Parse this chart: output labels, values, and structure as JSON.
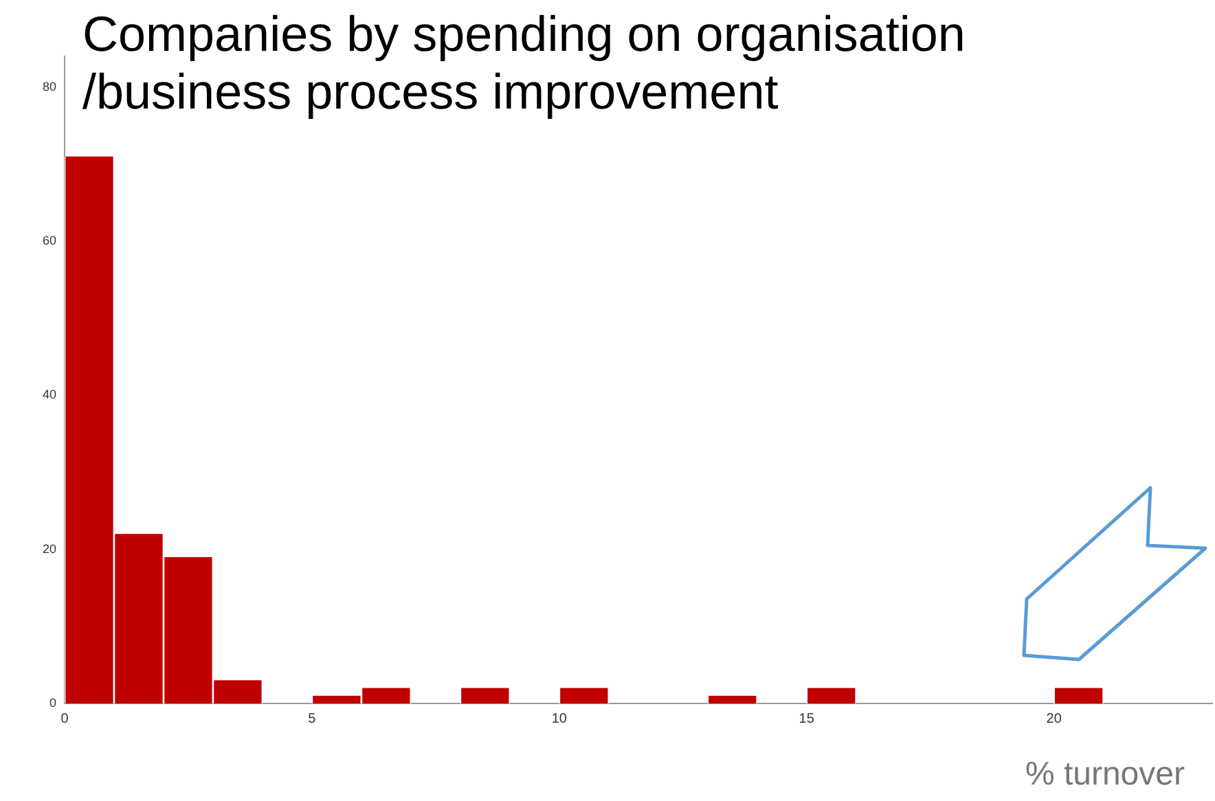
{
  "chart_data": {
    "type": "histogram",
    "title": "Companies by spending on organisation /business process improvement",
    "xlabel": "% turnover",
    "bins": [
      0,
      1,
      2,
      3,
      4,
      5,
      6,
      7,
      8,
      9,
      10,
      11,
      12,
      13,
      14,
      15,
      16,
      17,
      18,
      19,
      20,
      21
    ],
    "values": [
      71,
      22,
      19,
      3,
      0,
      1,
      2,
      0,
      2,
      0,
      2,
      0,
      0,
      1,
      0,
      2,
      0,
      0,
      0,
      0,
      2
    ],
    "color": "#c00000",
    "xlim": [
      0,
      23.2
    ],
    "xticks": [
      0,
      5,
      10,
      15,
      20
    ],
    "ylim": [
      0,
      84
    ],
    "yticks": [
      0,
      20,
      40,
      60,
      80
    ],
    "grid": false,
    "legend": false
  }
}
